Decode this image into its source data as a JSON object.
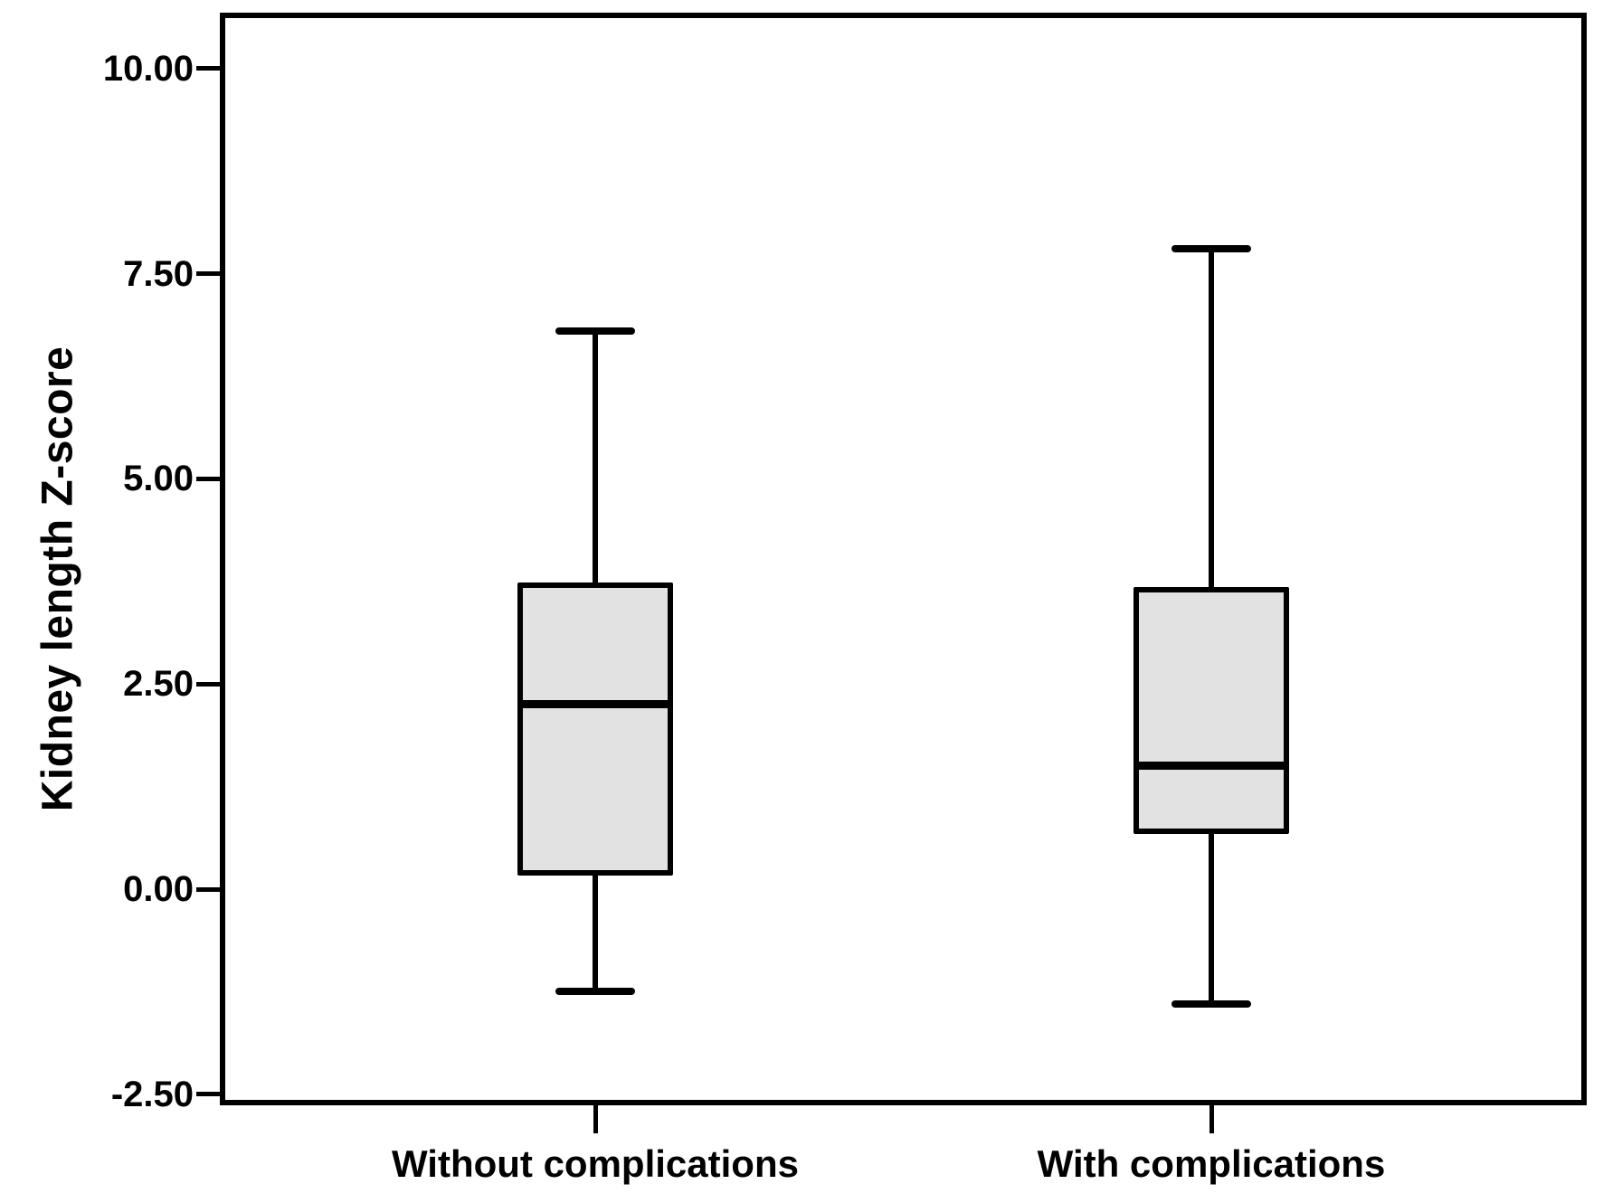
{
  "chart_data": {
    "type": "boxplot",
    "title": "",
    "xlabel": "",
    "ylabel": "Kidney length Z-score",
    "ylim": [
      -2.5,
      10.0
    ],
    "yticks": [
      10.0,
      7.5,
      5.0,
      2.5,
      0.0,
      -2.5
    ],
    "ytick_labels": [
      "10.00",
      "7.50",
      "5.00",
      "2.50",
      "0.00",
      "-2.50"
    ],
    "grid": false,
    "legend": "none",
    "categories": [
      "Without complications",
      "With complications"
    ],
    "series": [
      {
        "name": "Without complications",
        "whisker_low": -1.25,
        "q1": 0.2,
        "median": 2.25,
        "q3": 3.7,
        "whisker_high": 6.8
      },
      {
        "name": "With complications",
        "whisker_low": -1.4,
        "q1": 0.7,
        "median": 1.5,
        "q3": 3.65,
        "whisker_high": 7.8
      }
    ]
  },
  "styles": {
    "box_fill": "#e2e2e2",
    "line_color": "#000000",
    "background": "#ffffff"
  }
}
